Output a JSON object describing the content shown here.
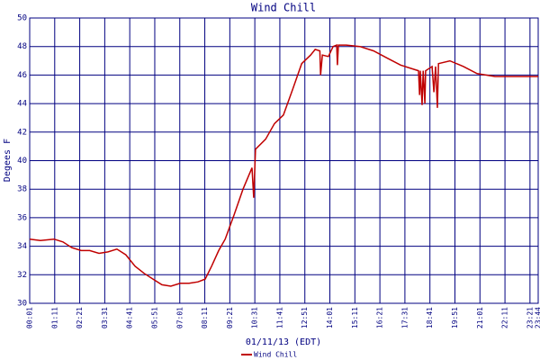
{
  "chart_data": {
    "type": "line",
    "title": "Wind Chill",
    "y_label": "Degees F",
    "x_label": "01/11/13 (EDT)",
    "x": [
      1,
      31,
      69,
      94,
      119,
      145,
      169,
      195,
      220,
      245,
      270,
      296,
      321,
      346,
      371,
      396,
      422,
      447,
      472,
      492,
      510,
      530,
      548,
      573,
      598,
      623,
      628,
      633,
      661,
      686,
      711,
      737,
      762,
      787,
      800,
      813,
      815,
      820,
      837,
      850,
      860,
      862,
      865,
      887,
      925,
      963,
      1001,
      1039,
      1077,
      1089,
      1092,
      1094,
      1099,
      1102,
      1107,
      1109,
      1127,
      1132,
      1137,
      1142,
      1145,
      1177,
      1215,
      1253,
      1303,
      1354,
      1424
    ],
    "series": [
      {
        "name": "Wind Chill",
        "color": "#c00000",
        "values": [
          34.5,
          34.4,
          34.5,
          34.3,
          33.9,
          33.7,
          33.7,
          33.5,
          33.6,
          33.8,
          33.4,
          32.6,
          32.1,
          31.7,
          31.3,
          31.2,
          31.4,
          31.4,
          31.5,
          31.7,
          32.6,
          33.7,
          34.5,
          36.2,
          38.0,
          39.5,
          37.4,
          40.8,
          41.5,
          42.6,
          43.2,
          45.0,
          46.8,
          47.4,
          47.8,
          47.7,
          46.0,
          47.4,
          47.3,
          48.0,
          48.1,
          46.7,
          48.1,
          48.1,
          48.0,
          47.7,
          47.2,
          46.7,
          46.4,
          46.3,
          44.6,
          46.3,
          43.9,
          46.3,
          44.0,
          46.3,
          46.6,
          44.8,
          46.6,
          43.7,
          46.8,
          47.0,
          46.6,
          46.1,
          45.9,
          45.9,
          45.9
        ]
      }
    ],
    "xlim": [
      1,
      1424
    ],
    "xticks": [
      {
        "value": 1,
        "label": "00:01"
      },
      {
        "value": 71,
        "label": "01:11"
      },
      {
        "value": 141,
        "label": "02:21"
      },
      {
        "value": 211,
        "label": "03:31"
      },
      {
        "value": 281,
        "label": "04:41"
      },
      {
        "value": 351,
        "label": "05:51"
      },
      {
        "value": 421,
        "label": "07:01"
      },
      {
        "value": 491,
        "label": "08:11"
      },
      {
        "value": 561,
        "label": "09:21"
      },
      {
        "value": 631,
        "label": "10:31"
      },
      {
        "value": 701,
        "label": "11:41"
      },
      {
        "value": 771,
        "label": "12:51"
      },
      {
        "value": 841,
        "label": "14:01"
      },
      {
        "value": 911,
        "label": "15:11"
      },
      {
        "value": 981,
        "label": "16:21"
      },
      {
        "value": 1051,
        "label": "17:31"
      },
      {
        "value": 1121,
        "label": "18:41"
      },
      {
        "value": 1191,
        "label": "19:51"
      },
      {
        "value": 1261,
        "label": "21:01"
      },
      {
        "value": 1331,
        "label": "22:11"
      },
      {
        "value": 1401,
        "label": "23:21"
      },
      {
        "value": 1424,
        "label": "23:44"
      }
    ],
    "ylim": [
      30,
      50
    ],
    "yticks": [
      30,
      32,
      34,
      36,
      38,
      40,
      42,
      44,
      46,
      48,
      50
    ],
    "grid": true,
    "grid_color": "#000080",
    "legend": "bottom"
  }
}
